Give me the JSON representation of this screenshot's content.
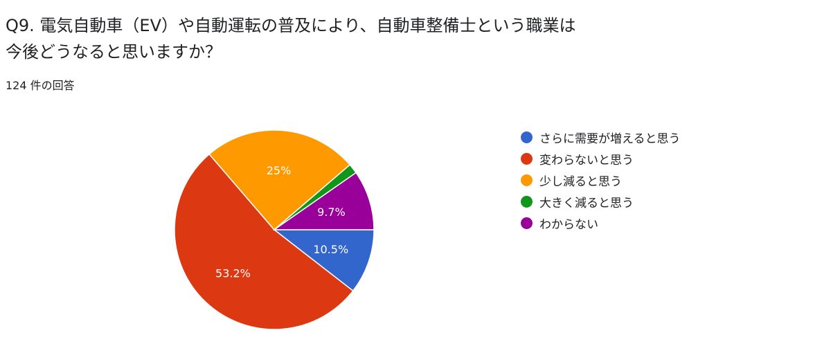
{
  "question": {
    "title_line1": "Q9. 電気自動車（EV）や自動運転の普及により、自動車整備士という職業は",
    "title_line2": "今後どうなると思いますか？",
    "response_count": "124 件の回答"
  },
  "chart_data": {
    "type": "pie",
    "title": "",
    "categories": [
      "さらに需要が増えると思う",
      "変わらないと思う",
      "少し減ると思う",
      "大きく減ると思う",
      "わからない"
    ],
    "values": [
      10.5,
      53.2,
      25.0,
      1.6,
      9.7
    ],
    "data_labels": [
      "10.5%",
      "53.2%",
      "25%",
      "",
      "9.7%"
    ],
    "colors": [
      "#3366cc",
      "#dc3912",
      "#ff9900",
      "#109618",
      "#990099"
    ],
    "start_direction": "3 o'clock",
    "direction": "clockwise",
    "legend": "right"
  }
}
